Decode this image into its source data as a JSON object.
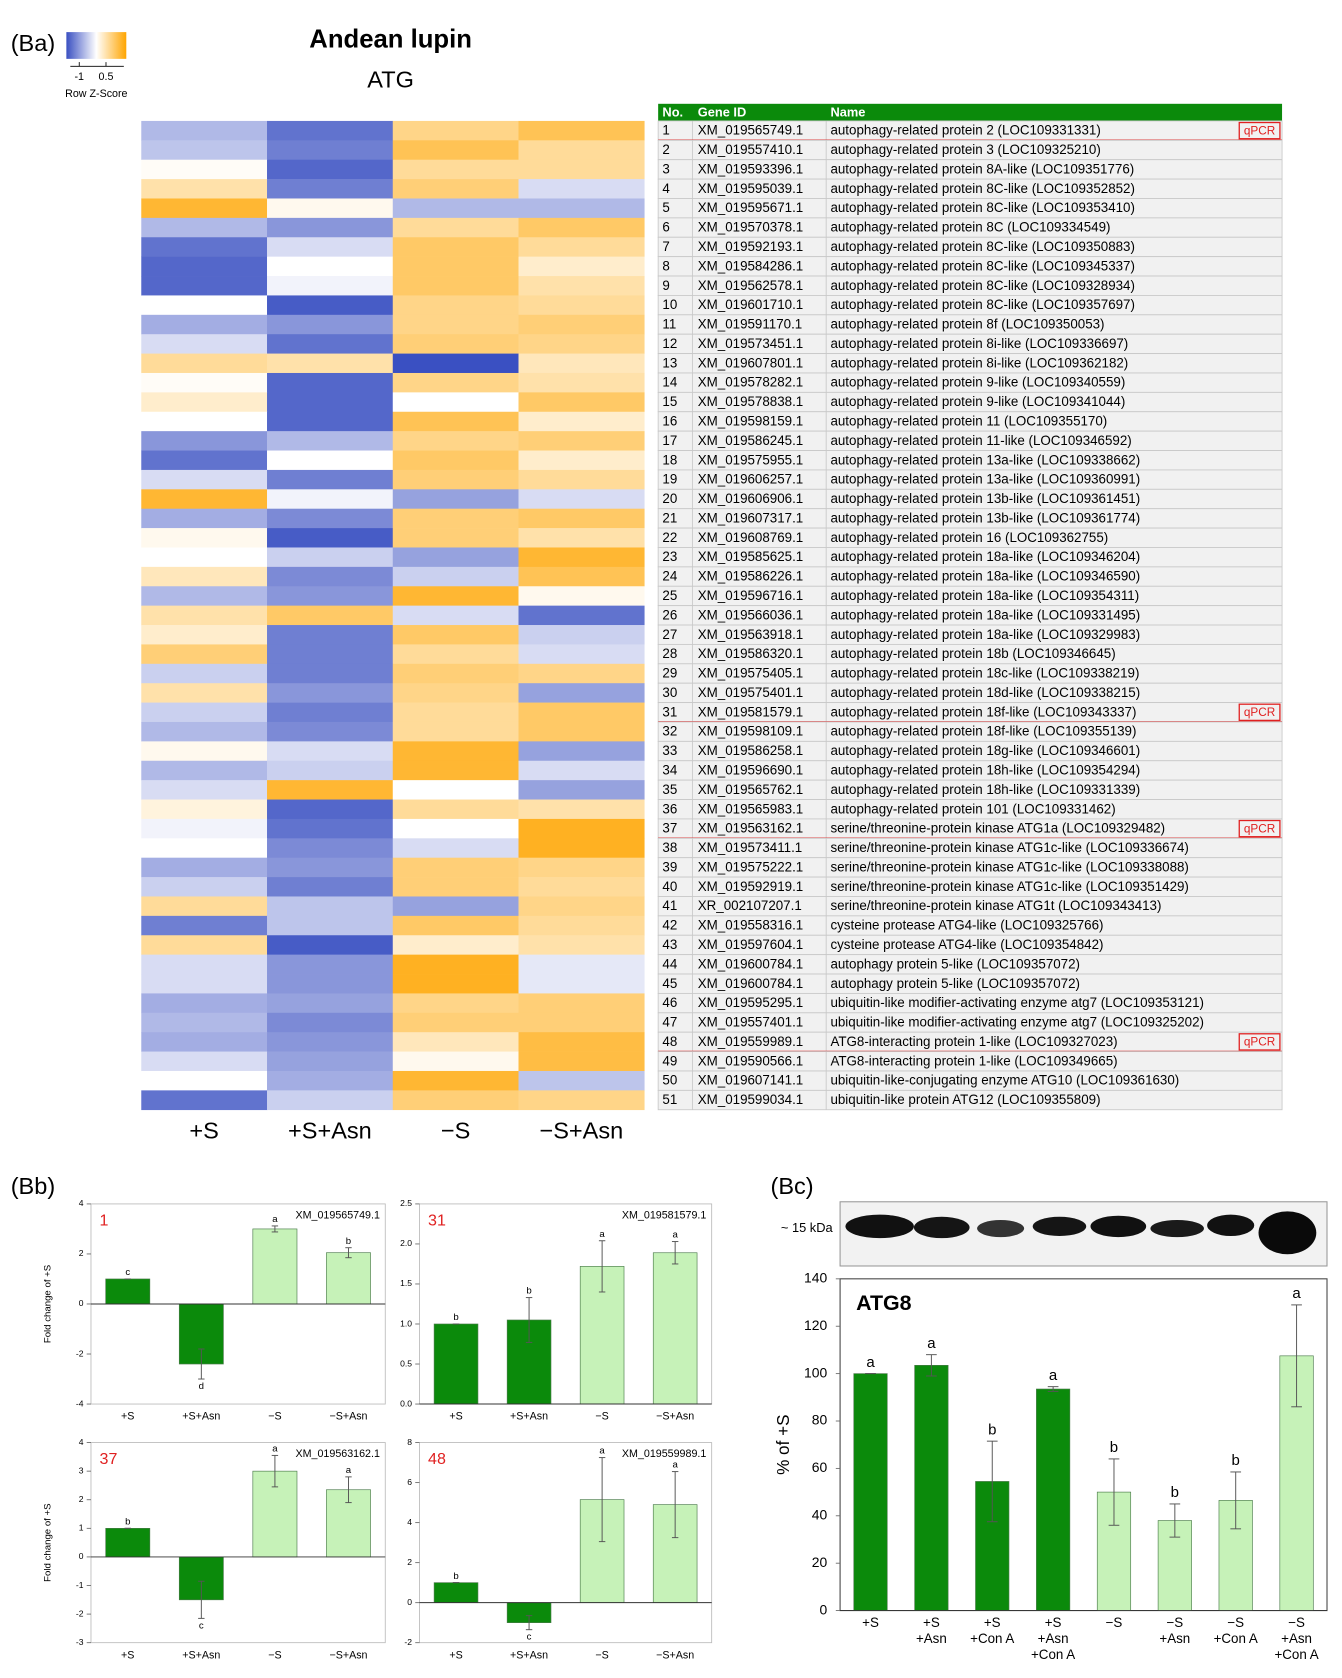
{
  "table": {
    "header": [
      "No.",
      "Gene ID",
      "Name"
    ],
    "rows": [
      [
        1,
        "XM_019565749.1",
        "autophagy-related protein 2 (LOC109331331)",
        "qPCR"
      ],
      [
        2,
        "XM_019557410.1",
        "autophagy-related protein 3 (LOC109325210)"
      ],
      [
        3,
        "XM_019593396.1",
        "autophagy-related protein 8A-like (LOC109351776)"
      ],
      [
        4,
        "XM_019595039.1",
        "autophagy-related protein 8C-like (LOC109352852)"
      ],
      [
        5,
        "XM_019595671.1",
        "autophagy-related protein 8C-like (LOC109353410)"
      ],
      [
        6,
        "XM_019570378.1",
        "autophagy-related protein 8C (LOC109334549)"
      ],
      [
        7,
        "XM_019592193.1",
        "autophagy-related protein 8C-like (LOC109350883)"
      ],
      [
        8,
        "XM_019584286.1",
        "autophagy-related protein 8C-like (LOC109345337)"
      ],
      [
        9,
        "XM_019562578.1",
        "autophagy-related protein 8C-like (LOC109328934)"
      ],
      [
        10,
        "XM_019601710.1",
        "autophagy-related protein 8C-like (LOC109357697)"
      ],
      [
        11,
        "XM_019591170.1",
        "autophagy-related protein 8f (LOC109350053)"
      ],
      [
        12,
        "XM_019573451.1",
        "autophagy-related protein 8i-like (LOC109336697)"
      ],
      [
        13,
        "XM_019607801.1",
        "autophagy-related protein 8i-like (LOC109362182)"
      ],
      [
        14,
        "XM_019578282.1",
        "autophagy-related protein 9-like (LOC109340559)"
      ],
      [
        15,
        "XM_019578838.1",
        "autophagy-related protein 9-like (LOC109341044)"
      ],
      [
        16,
        "XM_019598159.1",
        "autophagy-related protein 11 (LOC109355170)"
      ],
      [
        17,
        "XM_019586245.1",
        "autophagy-related protein 11-like (LOC109346592)"
      ],
      [
        18,
        "XM_019575955.1",
        "autophagy-related protein 13a-like (LOC109338662)"
      ],
      [
        19,
        "XM_019606257.1",
        "autophagy-related protein 13a-like (LOC109360991)"
      ],
      [
        20,
        "XM_019606906.1",
        "autophagy-related protein 13b-like (LOC109361451)"
      ],
      [
        21,
        "XM_019607317.1",
        "autophagy-related protein 13b-like (LOC109361774)"
      ],
      [
        22,
        "XM_019608769.1",
        "autophagy-related protein 16 (LOC109362755)"
      ],
      [
        23,
        "XM_019585625.1",
        "autophagy-related protein 18a-like (LOC109346204)"
      ],
      [
        24,
        "XM_019586226.1",
        "autophagy-related protein 18a-like (LOC109346590)"
      ],
      [
        25,
        "XM_019596716.1",
        "autophagy-related protein 18a-like (LOC109354311)"
      ],
      [
        26,
        "XM_019566036.1",
        "autophagy-related protein 18a-like (LOC109331495)"
      ],
      [
        27,
        "XM_019563918.1",
        "autophagy-related protein 18a-like (LOC109329983)"
      ],
      [
        28,
        "XM_019586320.1",
        "autophagy-related protein 18b (LOC109346645)"
      ],
      [
        29,
        "XM_019575405.1",
        "autophagy-related protein 18c-like (LOC109338219)"
      ],
      [
        30,
        "XM_019575401.1",
        "autophagy-related protein 18d-like (LOC109338215)"
      ],
      [
        31,
        "XM_019581579.1",
        "autophagy-related protein 18f-like (LOC109343337)",
        "qPCR"
      ],
      [
        32,
        "XM_019598109.1",
        "autophagy-related protein 18f-like (LOC109355139)"
      ],
      [
        33,
        "XM_019586258.1",
        "autophagy-related protein 18g-like (LOC109346601)"
      ],
      [
        34,
        "XM_019596690.1",
        "autophagy-related protein 18h-like (LOC109354294)"
      ],
      [
        35,
        "XM_019565762.1",
        "autophagy-related protein 18h-like (LOC109331339)"
      ],
      [
        36,
        "XM_019565983.1",
        "autophagy-related protein 101 (LOC109331462)"
      ],
      [
        37,
        "XM_019563162.1",
        "serine/threonine-protein kinase ATG1a (LOC109329482)",
        "qPCR"
      ],
      [
        38,
        "XM_019573411.1",
        "serine/threonine-protein kinase ATG1c-like (LOC109336674)"
      ],
      [
        39,
        "XM_019575222.1",
        "serine/threonine-protein kinase ATG1c-like (LOC109338088)"
      ],
      [
        40,
        "XM_019592919.1",
        "serine/threonine-protein kinase ATG1c-like (LOC109351429)"
      ],
      [
        41,
        "XR_002107207.1",
        "serine/threonine-protein kinase ATG1t (LOC109343413)"
      ],
      [
        42,
        "XM_019558316.1",
        "cysteine protease ATG4-like (LOC109325766)"
      ],
      [
        43,
        "XM_019597604.1",
        "cysteine protease ATG4-like (LOC109354842)"
      ],
      [
        44,
        "XM_019600784.1",
        "autophagy protein 5-like (LOC109357072)"
      ],
      [
        45,
        "XM_019600784.1",
        "autophagy protein 5-like (LOC109357072)"
      ],
      [
        46,
        "XM_019595295.1",
        "ubiquitin-like modifier-activating enzyme atg7 (LOC109353121)"
      ],
      [
        47,
        "XM_019557401.1",
        "ubiquitin-like modifier-activating enzyme atg7 (LOC109325202)"
      ],
      [
        48,
        "XM_019559989.1",
        "ATG8-interacting protein 1-like (LOC109327023)",
        "qPCR"
      ],
      [
        49,
        "XM_019590566.1",
        "ATG8-interacting protein 1-like (LOC109349665)"
      ],
      [
        50,
        "XM_019607141.1",
        "ubiquitin-like-conjugating enzyme ATG10 (LOC109361630)"
      ],
      [
        51,
        "XM_019599034.1",
        "ubiquitin-like protein ATG12 (LOC109355809)"
      ]
    ]
  },
  "chart_data": [
    {
      "type": "heatmap",
      "panel": "(Ba)",
      "title": "Andean lupin",
      "subtitle": "ATG",
      "columns": [
        "+S",
        "+S+Asn",
        "−S",
        "−S+Asn"
      ],
      "colors": [
        "#3a50c2",
        "#ffffff",
        "#ffa500"
      ],
      "colorbar": {
        "label": "Row Z-Score",
        "lim": [
          -1.5,
          1.5
        ],
        "ticks": [
          -1,
          0.5
        ]
      },
      "values": [
        [
          -0.6,
          -1.2,
          0.7,
          1.0
        ],
        [
          -0.5,
          -1.1,
          1.0,
          0.6
        ],
        [
          0.05,
          -1.3,
          0.6,
          0.6
        ],
        [
          0.5,
          -1.1,
          0.8,
          -0.3
        ],
        [
          1.2,
          0.1,
          -0.6,
          -0.6
        ],
        [
          -0.6,
          -0.9,
          0.6,
          0.9
        ],
        [
          -1.2,
          -0.3,
          0.9,
          0.6
        ],
        [
          -1.3,
          0.0,
          0.9,
          0.3
        ],
        [
          -1.3,
          -0.1,
          0.9,
          0.5
        ],
        [
          0.0,
          -1.4,
          0.7,
          0.6
        ],
        [
          -0.7,
          -0.9,
          0.7,
          0.8
        ],
        [
          -0.3,
          -1.2,
          0.8,
          0.7
        ],
        [
          0.6,
          0.5,
          -1.5,
          0.4
        ],
        [
          0.05,
          -1.3,
          0.7,
          0.5
        ],
        [
          0.3,
          -1.3,
          0.0,
          0.9
        ],
        [
          0.0,
          -1.3,
          1.0,
          0.3
        ],
        [
          -0.9,
          -0.6,
          0.7,
          0.8
        ],
        [
          -1.2,
          0.0,
          0.9,
          0.3
        ],
        [
          -0.3,
          -1.1,
          0.8,
          0.6
        ],
        [
          1.2,
          -0.1,
          -0.8,
          -0.3
        ],
        [
          -0.7,
          -1.0,
          0.8,
          0.9
        ],
        [
          0.1,
          -1.4,
          0.8,
          0.5
        ],
        [
          0.0,
          -0.4,
          -0.8,
          1.2
        ],
        [
          0.4,
          -1.0,
          -0.4,
          1.0
        ],
        [
          -0.6,
          -0.9,
          1.2,
          0.1
        ],
        [
          0.5,
          0.9,
          -0.3,
          -1.2
        ],
        [
          0.3,
          -1.1,
          0.9,
          -0.4
        ],
        [
          0.8,
          -1.1,
          0.6,
          -0.3
        ],
        [
          -0.4,
          -1.1,
          0.8,
          0.7
        ],
        [
          0.5,
          -0.9,
          0.7,
          -0.8
        ],
        [
          -0.4,
          -1.1,
          0.6,
          0.9
        ],
        [
          -0.6,
          -1.0,
          0.6,
          0.9
        ],
        [
          0.1,
          -0.3,
          1.2,
          -0.8
        ],
        [
          -0.6,
          -0.4,
          1.2,
          -0.3
        ],
        [
          -0.3,
          1.2,
          0.0,
          -0.8
        ],
        [
          0.2,
          -1.3,
          0.6,
          0.5
        ],
        [
          -0.1,
          -1.2,
          0.0,
          1.3
        ],
        [
          0.0,
          -1.0,
          -0.3,
          1.3
        ],
        [
          -0.7,
          -0.9,
          0.8,
          0.7
        ],
        [
          -0.4,
          -1.1,
          0.8,
          0.6
        ],
        [
          0.6,
          -0.5,
          -0.8,
          0.7
        ],
        [
          -1.1,
          -0.5,
          0.9,
          0.6
        ],
        [
          0.6,
          -1.4,
          0.3,
          0.5
        ],
        [
          -0.3,
          -0.9,
          1.3,
          -0.2
        ],
        [
          -0.3,
          -0.9,
          1.3,
          -0.2
        ],
        [
          -0.7,
          -0.8,
          0.7,
          0.8
        ],
        [
          -0.6,
          -1.0,
          0.8,
          0.8
        ],
        [
          -0.7,
          -0.9,
          0.4,
          1.1
        ],
        [
          -0.3,
          -0.8,
          0.1,
          1.1
        ],
        [
          0.0,
          -0.7,
          1.2,
          -0.5
        ],
        [
          -1.2,
          -0.4,
          0.8,
          0.7
        ]
      ]
    },
    {
      "type": "bar",
      "panel": "(Bb)",
      "label": "1",
      "gene_id": "XM_019565749.1",
      "ylabel": "Fold change of +S",
      "categories": [
        "+S",
        "+S+Asn",
        "−S",
        "−S+Asn"
      ],
      "colors": [
        "#0b8a0b",
        "#0b8a0b",
        "#c6f2b8",
        "#c6f2b8"
      ],
      "values": [
        1,
        -2.4,
        3.0,
        2.05
      ],
      "errors": [
        0,
        0.6,
        0.12,
        0.2
      ],
      "letters": [
        "c",
        "d",
        "a",
        "b"
      ],
      "ylim": [
        -4,
        4
      ],
      "yticks": [
        -4,
        -2,
        0,
        2,
        4
      ]
    },
    {
      "type": "bar",
      "label": "31",
      "gene_id": "XM_019581579.1",
      "categories": [
        "+S",
        "+S+Asn",
        "−S",
        "−S+Asn"
      ],
      "colors": [
        "#0b8a0b",
        "#0b8a0b",
        "#c6f2b8",
        "#c6f2b8"
      ],
      "values": [
        1.0,
        1.05,
        1.72,
        1.89
      ],
      "errors": [
        0,
        0.28,
        0.32,
        0.14
      ],
      "letters": [
        "b",
        "b",
        "a",
        "a"
      ],
      "ylim": [
        0,
        2.5
      ],
      "yticks": [
        {
          "value": 0,
          "label": "0.0"
        },
        0.5,
        {
          "value": 1,
          "label": "1.0"
        },
        1.5,
        {
          "value": 2,
          "label": "2.0"
        },
        2.5
      ]
    },
    {
      "type": "bar",
      "label": "37",
      "gene_id": "XM_019563162.1",
      "ylabel": "Fold change of +S",
      "categories": [
        "+S",
        "+S+Asn",
        "−S",
        "−S+Asn"
      ],
      "colors": [
        "#0b8a0b",
        "#0b8a0b",
        "#c6f2b8",
        "#c6f2b8"
      ],
      "values": [
        1,
        -1.5,
        3.0,
        2.35
      ],
      "errors": [
        0,
        0.65,
        0.55,
        0.45
      ],
      "letters": [
        "b",
        "c",
        "a",
        "a"
      ],
      "ylim": [
        -3,
        4
      ],
      "yticks": [
        -3,
        -2,
        -1,
        0,
        1,
        2,
        3,
        4
      ]
    },
    {
      "type": "bar",
      "label": "48",
      "gene_id": "XM_019559989.1",
      "categories": [
        "+S",
        "+S+Asn",
        "−S",
        "−S+Asn"
      ],
      "colors": [
        "#0b8a0b",
        "#0b8a0b",
        "#c6f2b8",
        "#c6f2b8"
      ],
      "values": [
        1,
        -1.0,
        5.15,
        4.9
      ],
      "errors": [
        0,
        0.35,
        2.1,
        1.65
      ],
      "letters": [
        "b",
        "c",
        "a",
        "a"
      ],
      "ylim": [
        -2,
        8
      ],
      "yticks": [
        -2,
        0,
        2,
        4,
        6,
        8
      ]
    },
    {
      "type": "bar",
      "panel": "(Bc)",
      "title": "ATG8",
      "ylabel": "% of +S",
      "blot_label": "~ 15 kDa",
      "categories": [
        [
          "+S"
        ],
        [
          "+S",
          "+Asn"
        ],
        [
          "+S",
          "+Con A"
        ],
        [
          "+S",
          "+Asn",
          "+Con A"
        ],
        [
          "−S"
        ],
        [
          "−S",
          "+Asn"
        ],
        [
          "−S",
          "+Con A"
        ],
        [
          "−S",
          "+Asn",
          "+Con A"
        ]
      ],
      "colors": [
        "#0b8a0b",
        "#0b8a0b",
        "#0b8a0b",
        "#0b8a0b",
        "#c6f2b8",
        "#c6f2b8",
        "#c6f2b8",
        "#c6f2b8"
      ],
      "values": [
        100,
        103.5,
        54.5,
        93.5,
        50,
        38,
        46.5,
        107.5
      ],
      "errors": [
        0,
        4.5,
        17,
        1,
        14,
        7,
        12,
        21.5
      ],
      "letters": [
        "a",
        "a",
        "b",
        "a",
        "b",
        "b",
        "b",
        "a"
      ],
      "ylim": [
        0,
        140
      ],
      "yticks": [
        0,
        20,
        40,
        60,
        80,
        100,
        120,
        140
      ]
    }
  ]
}
